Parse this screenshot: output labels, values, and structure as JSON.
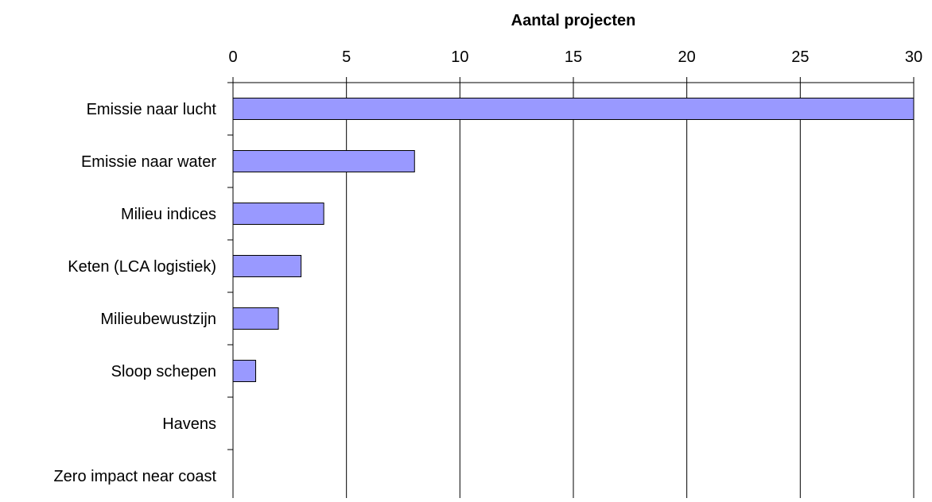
{
  "chart_data": {
    "type": "bar",
    "orientation": "horizontal",
    "title": "Aantal projecten",
    "xlabel": "Aantal projecten",
    "ylabel": "",
    "categories": [
      "Emissie naar lucht",
      "Emissie naar water",
      "Milieu indices",
      "Keten (LCA logistiek)",
      "Milieubewustzijn",
      "Sloop schepen",
      "Havens",
      "Zero impact near coast"
    ],
    "values": [
      30,
      8,
      4,
      3,
      2,
      1,
      0,
      0
    ],
    "xlim": [
      0,
      30
    ],
    "xticks": [
      0,
      5,
      10,
      15,
      20,
      25,
      30
    ],
    "x_axis_position": "top",
    "grid": "vertical",
    "legend": "none",
    "colors": {
      "bar_fill": "#9999ff",
      "bar_stroke": "#000000",
      "grid": "#000000",
      "text": "#000000",
      "background": "#ffffff"
    }
  }
}
